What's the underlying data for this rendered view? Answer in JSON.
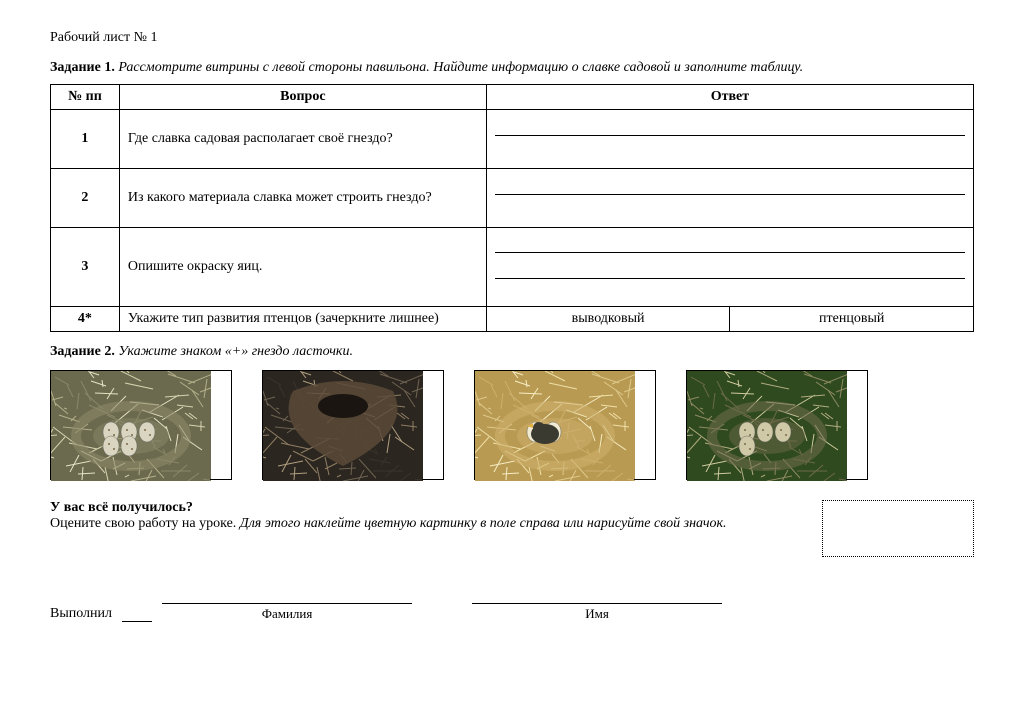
{
  "header": {
    "worksheet_title": "Рабочий лист № 1"
  },
  "task1": {
    "label": "Задание 1.",
    "text": "Рассмотрите витрины с левой стороны павильона. Найдите информацию о славке садовой и заполните таблицу.",
    "table": {
      "col_n": "№ пп",
      "col_q": "Вопрос",
      "col_a": "Ответ",
      "rows": [
        {
          "n": "1",
          "q": "Где славка садовая располагает своё гнездо?",
          "answer_lines": 2
        },
        {
          "n": "2",
          "q": "Из какого материала славка может строить гнездо?",
          "answer_lines": 2
        },
        {
          "n": "3",
          "q": "Опишите окраску яиц.",
          "answer_lines": 3
        },
        {
          "n": "4*",
          "q": "Укажите тип развития птенцов (зачеркните лишнее)",
          "choices": [
            "выводковый",
            "птенцовый"
          ]
        }
      ]
    }
  },
  "task2": {
    "label": "Задание 2.",
    "text": "Укажите знаком «+» гнездо ласточки.",
    "nests": [
      {
        "name": "nest-1",
        "colors": [
          "#6b6a4f",
          "#8a8868",
          "#b4b08a",
          "#d8d4b0",
          "#e7e2c4"
        ],
        "eggs": 5,
        "egg_color": "#d9d5c0"
      },
      {
        "name": "nest-2",
        "colors": [
          "#2b2620",
          "#3a342b",
          "#6f6452",
          "#907f63",
          "#b19f7f"
        ],
        "eggs": 0,
        "egg_color": "#ffffff",
        "mud": true
      },
      {
        "name": "nest-3",
        "colors": [
          "#b89a52",
          "#cdb06d",
          "#dec98b",
          "#efe0a8",
          "#f6edc4"
        ],
        "eggs": 2,
        "egg_color": "#f0ead2",
        "chick": true
      },
      {
        "name": "nest-4",
        "colors": [
          "#2f4a1e",
          "#6d6a4a",
          "#8f8a63",
          "#b2ac82",
          "#d0caa0"
        ],
        "eggs": 4,
        "egg_color": "#cfc9a8"
      }
    ]
  },
  "evaluation": {
    "question": "У вас всё получилось?",
    "instr_prefix": "Оцените свою работу на уроке.  ",
    "instr_italic": "Для этого наклейте цветную картинку в поле справа или нарисуйте свой значок."
  },
  "signature": {
    "performed": "Выполнил",
    "surname": "Фамилия",
    "name": "Имя"
  }
}
